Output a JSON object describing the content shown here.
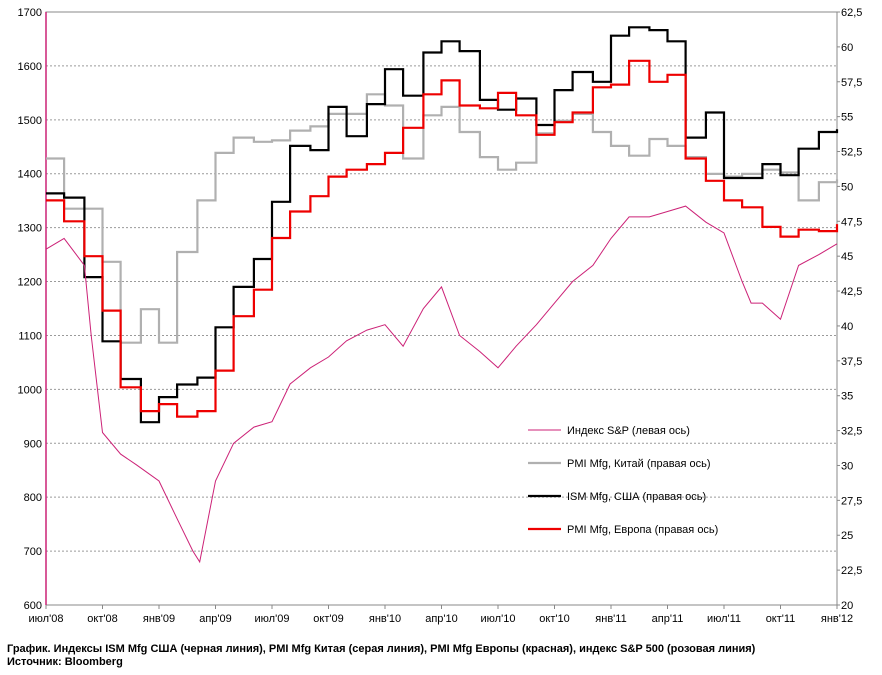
{
  "caption": {
    "line1": "График. Индексы ISM Mfg США (черная линия), PMI Mfg Китая (серая линия), PMI Mfg Европы (красная), индекс S&P 500 (розовая линия)",
    "line2": "Источник: Bloomberg"
  },
  "chart_data": {
    "type": "line",
    "x_ticks": [
      "июл'08",
      "окт'08",
      "янв'09",
      "апр'09",
      "июл'09",
      "окт'09",
      "янв'10",
      "апр'10",
      "июл'10",
      "окт'10",
      "янв'11",
      "апр'11",
      "июл'11",
      "окт'11",
      "янв'12"
    ],
    "y_left": {
      "ylim": [
        600,
        1700
      ],
      "ticks": [
        600,
        700,
        800,
        900,
        1000,
        1100,
        1200,
        1300,
        1400,
        1500,
        1600,
        1700
      ]
    },
    "y_right": {
      "ylim": [
        20,
        62.5
      ],
      "ticks": [
        "20",
        "22,5",
        "25",
        "27,5",
        "30",
        "32,5",
        "35",
        "37,5",
        "40",
        "42,5",
        "45",
        "47,5",
        "50",
        "52,5",
        "55",
        "57,5",
        "60",
        "62,5"
      ]
    },
    "grid": true,
    "legend_position": "inside-lower-right",
    "series": [
      {
        "name": "Индекс S&P (левая ось)",
        "axis": "left",
        "color": "#cc2277",
        "style": "line",
        "x": [
          2008.5,
          2008.58,
          2008.67,
          2008.7,
          2008.75,
          2008.83,
          2008.9,
          2009.0,
          2009.08,
          2009.15,
          2009.18,
          2009.25,
          2009.33,
          2009.42,
          2009.5,
          2009.58,
          2009.67,
          2009.75,
          2009.83,
          2009.92,
          2010.0,
          2010.08,
          2010.17,
          2010.25,
          2010.33,
          2010.42,
          2010.5,
          2010.58,
          2010.67,
          2010.75,
          2010.83,
          2010.92,
          2011.0,
          2011.08,
          2011.17,
          2011.25,
          2011.33,
          2011.42,
          2011.5,
          2011.58,
          2011.62,
          2011.67,
          2011.75,
          2011.83,
          2011.92,
          2012.0
        ],
        "y": [
          1260,
          1280,
          1230,
          1100,
          920,
          880,
          860,
          830,
          760,
          700,
          680,
          830,
          900,
          930,
          940,
          1010,
          1040,
          1060,
          1090,
          1110,
          1120,
          1080,
          1150,
          1190,
          1100,
          1070,
          1040,
          1080,
          1120,
          1160,
          1200,
          1230,
          1280,
          1320,
          1320,
          1330,
          1340,
          1310,
          1290,
          1200,
          1160,
          1160,
          1130,
          1230,
          1250,
          1270
        ]
      },
      {
        "name": "PMI Mfg, Китай (правая ось)",
        "axis": "right",
        "color": "#b0b0b0",
        "style": "step",
        "x": [
          2008.5,
          2008.58,
          2008.67,
          2008.75,
          2008.83,
          2008.92,
          2009.0,
          2009.08,
          2009.17,
          2009.25,
          2009.33,
          2009.42,
          2009.5,
          2009.58,
          2009.67,
          2009.75,
          2009.83,
          2009.92,
          2010.0,
          2010.08,
          2010.17,
          2010.25,
          2010.33,
          2010.42,
          2010.5,
          2010.58,
          2010.67,
          2010.75,
          2010.83,
          2010.92,
          2011.0,
          2011.08,
          2011.17,
          2011.25,
          2011.33,
          2011.42,
          2011.5,
          2011.58,
          2011.67,
          2011.75,
          2011.83,
          2011.92,
          2012.0
        ],
        "y": [
          52,
          48.4,
          48.4,
          44.6,
          38.8,
          41.2,
          38.8,
          45.3,
          49,
          52.4,
          53.5,
          53.2,
          53.3,
          54,
          54.3,
          55.2,
          55.2,
          56.6,
          55.8,
          52,
          55.1,
          55.7,
          53.9,
          52.1,
          51.2,
          51.7,
          53.8,
          54.7,
          55.2,
          53.9,
          52.9,
          52.2,
          53.4,
          52.9,
          52.1,
          50.9,
          50.7,
          50.9,
          51.2,
          51,
          49,
          50.3,
          50.5
        ]
      },
      {
        "name": "ISM Mfg, США (правая ось)",
        "axis": "right",
        "color": "#000000",
        "style": "step",
        "x": [
          2008.5,
          2008.58,
          2008.67,
          2008.75,
          2008.83,
          2008.92,
          2009.0,
          2009.08,
          2009.17,
          2009.25,
          2009.33,
          2009.42,
          2009.5,
          2009.58,
          2009.67,
          2009.75,
          2009.83,
          2009.92,
          2010.0,
          2010.08,
          2010.17,
          2010.25,
          2010.33,
          2010.42,
          2010.5,
          2010.58,
          2010.67,
          2010.75,
          2010.83,
          2010.92,
          2011.0,
          2011.08,
          2011.17,
          2011.25,
          2011.33,
          2011.42,
          2011.5,
          2011.58,
          2011.67,
          2011.75,
          2011.83,
          2011.92,
          2012.0
        ],
        "y": [
          49.5,
          49.2,
          43.5,
          38.9,
          36.2,
          33.1,
          34.9,
          35.8,
          36.3,
          39.9,
          42.8,
          44.8,
          48.9,
          52.9,
          52.6,
          55.7,
          53.6,
          55.9,
          58.4,
          56.5,
          59.6,
          60.4,
          59.7,
          56.2,
          55.5,
          56.3,
          54.4,
          56.9,
          58.2,
          57.5,
          60.8,
          61.4,
          61.2,
          60.4,
          53.5,
          55.3,
          50.6,
          50.6,
          51.6,
          50.8,
          52.7,
          53.9,
          54.1
        ]
      },
      {
        "name": "PMI Mfg, Европа (правая ось)",
        "axis": "right",
        "color": "#ee0000",
        "style": "step",
        "x": [
          2008.5,
          2008.58,
          2008.67,
          2008.75,
          2008.83,
          2008.92,
          2009.0,
          2009.08,
          2009.17,
          2009.25,
          2009.33,
          2009.42,
          2009.5,
          2009.58,
          2009.67,
          2009.75,
          2009.83,
          2009.92,
          2010.0,
          2010.08,
          2010.17,
          2010.25,
          2010.33,
          2010.42,
          2010.5,
          2010.58,
          2010.67,
          2010.75,
          2010.83,
          2010.92,
          2011.0,
          2011.08,
          2011.17,
          2011.25,
          2011.33,
          2011.42,
          2011.5,
          2011.58,
          2011.67,
          2011.75,
          2011.83,
          2011.92,
          2012.0
        ],
        "y": [
          49,
          47.5,
          45,
          41.1,
          35.6,
          33.9,
          34.4,
          33.5,
          33.9,
          36.8,
          40.7,
          42.6,
          46.3,
          48.2,
          49.3,
          50.7,
          51.2,
          51.6,
          52.4,
          54.2,
          56.6,
          57.6,
          55.8,
          55.6,
          56.7,
          55.1,
          53.7,
          54.6,
          55.3,
          57.1,
          57.3,
          59.0,
          57.5,
          58.0,
          52.0,
          50.4,
          49.0,
          48.5,
          47.1,
          46.4,
          46.9,
          46.8,
          47.3
        ]
      }
    ]
  }
}
